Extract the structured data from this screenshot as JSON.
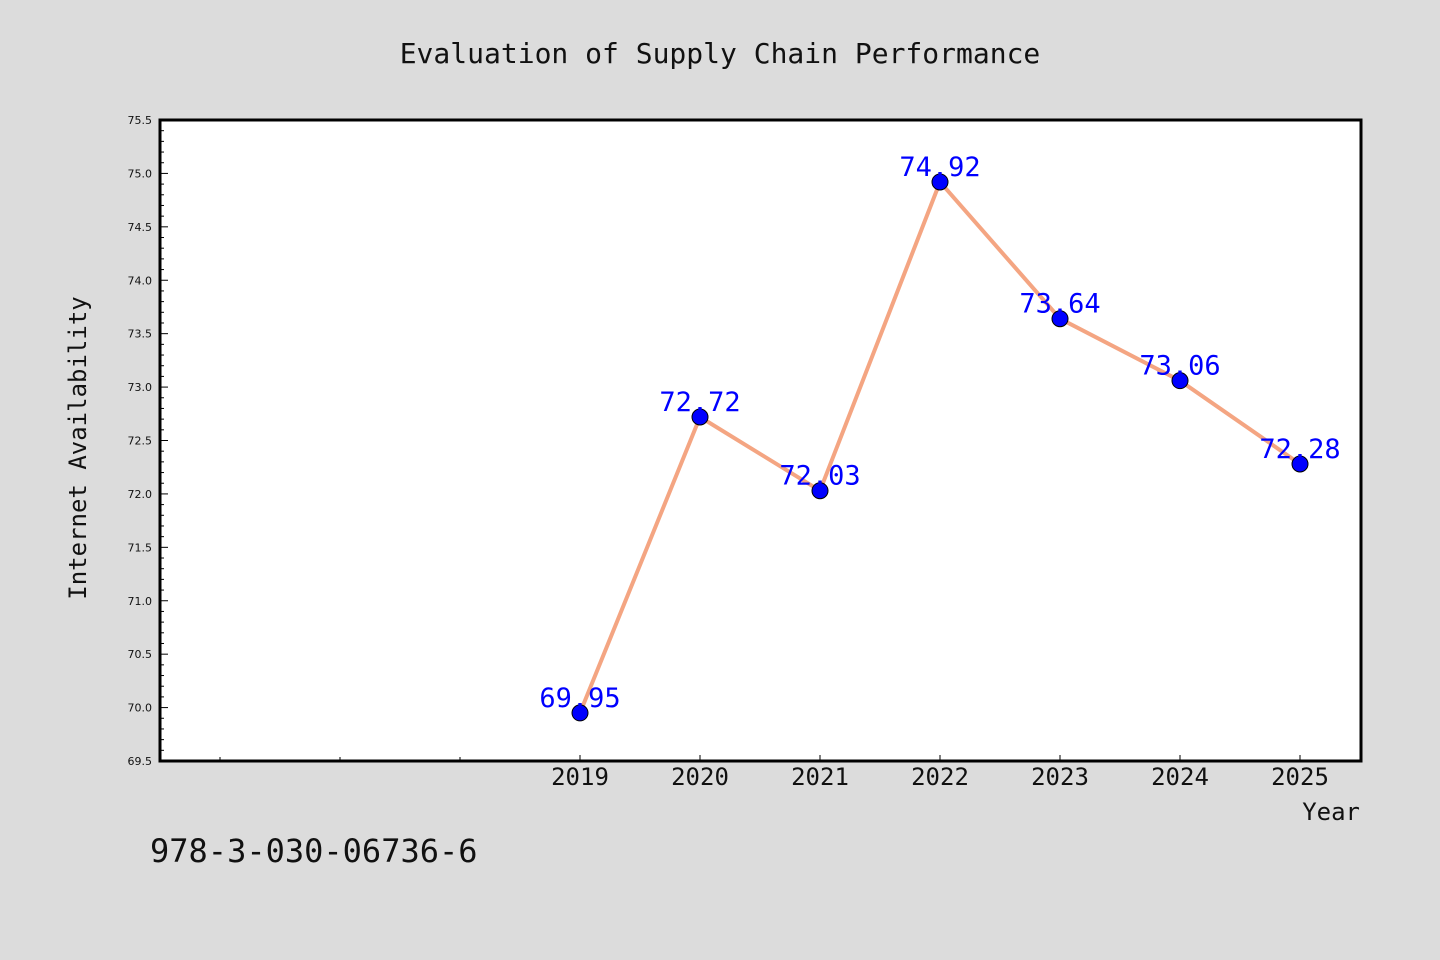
{
  "chart_data": {
    "type": "line",
    "title": "Evaluation of Supply Chain Performance",
    "xlabel": "Year",
    "ylabel": "Internet Availability",
    "x": [
      "2019",
      "2020",
      "2021",
      "2022",
      "2023",
      "2024",
      "2025"
    ],
    "y": [
      69.95,
      72.72,
      72.03,
      74.92,
      73.64,
      73.06,
      72.28
    ],
    "data_labels": [
      "69.95",
      "72.72",
      "72.03",
      "74.92",
      "73.64",
      "73.06",
      "72.28"
    ],
    "ylim": [
      69.5,
      75.5
    ],
    "yticks": [
      "69.5",
      "70.0",
      "70.5",
      "71.0",
      "71.5",
      "72.0",
      "72.5",
      "73.0",
      "73.5",
      "74.0",
      "74.5",
      "75.0",
      "75.5"
    ],
    "grid": false,
    "legend": "none",
    "colors": {
      "line": "#f4a582",
      "marker": "#0000ff",
      "labels": "#0000ff",
      "background": "#dcdcdc",
      "plot_area": "#ffffff"
    }
  },
  "footer_code": "978-3-030-06736-6"
}
